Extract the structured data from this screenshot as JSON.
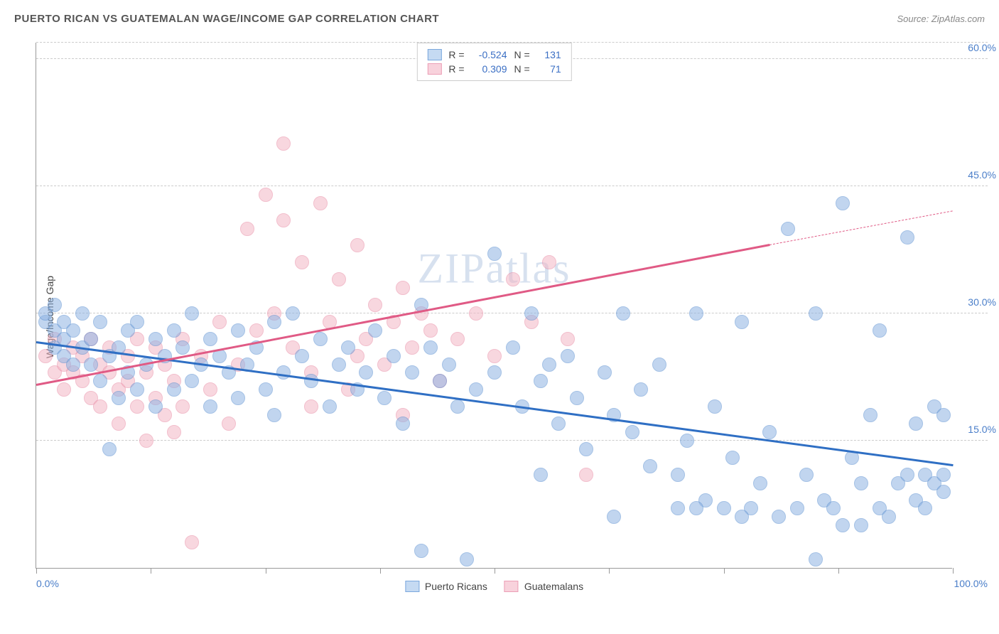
{
  "title": "PUERTO RICAN VS GUATEMALAN WAGE/INCOME GAP CORRELATION CHART",
  "source": "Source: ZipAtlas.com",
  "watermark": "ZIPatlas",
  "ylabel": "Wage/Income Gap",
  "chart": {
    "type": "scatter",
    "xlim": [
      0,
      100
    ],
    "ylim": [
      0,
      62
    ],
    "background_color": "#ffffff",
    "grid_color": "#cccccc",
    "axis_color": "#999999",
    "tick_label_color": "#4a7ec9",
    "y_gridlines": [
      15,
      30,
      45,
      60
    ],
    "y_tick_labels": [
      "15.0%",
      "30.0%",
      "45.0%",
      "60.0%"
    ],
    "x_ticks": [
      0,
      12.5,
      25,
      37.5,
      50,
      62.5,
      75,
      87.5,
      100
    ],
    "x_tick_labels": {
      "0": "0.0%",
      "100": "100.0%"
    },
    "point_radius": 10,
    "point_opacity": 0.55,
    "series": [
      {
        "name": "Puerto Ricans",
        "color": "#8fb4e3",
        "stroke": "#5a8fd0",
        "R": "-0.524",
        "N": "131",
        "trend": {
          "x1": 0,
          "y1": 26.5,
          "x2": 100,
          "y2": 12,
          "color": "#2f6fc4",
          "width": 3
        },
        "points": [
          [
            1,
            29
          ],
          [
            1,
            30
          ],
          [
            2,
            28
          ],
          [
            2,
            26
          ],
          [
            2,
            31
          ],
          [
            3,
            25
          ],
          [
            3,
            29
          ],
          [
            3,
            27
          ],
          [
            4,
            28
          ],
          [
            4,
            24
          ],
          [
            5,
            26
          ],
          [
            5,
            30
          ],
          [
            6,
            24
          ],
          [
            6,
            27
          ],
          [
            7,
            29
          ],
          [
            7,
            22
          ],
          [
            8,
            25
          ],
          [
            8,
            14
          ],
          [
            9,
            26
          ],
          [
            9,
            20
          ],
          [
            10,
            28
          ],
          [
            10,
            23
          ],
          [
            11,
            21
          ],
          [
            11,
            29
          ],
          [
            12,
            24
          ],
          [
            13,
            27
          ],
          [
            13,
            19
          ],
          [
            14,
            25
          ],
          [
            15,
            28
          ],
          [
            15,
            21
          ],
          [
            16,
            26
          ],
          [
            17,
            22
          ],
          [
            17,
            30
          ],
          [
            18,
            24
          ],
          [
            19,
            27
          ],
          [
            19,
            19
          ],
          [
            20,
            25
          ],
          [
            21,
            23
          ],
          [
            22,
            28
          ],
          [
            22,
            20
          ],
          [
            23,
            24
          ],
          [
            24,
            26
          ],
          [
            25,
            21
          ],
          [
            26,
            29
          ],
          [
            26,
            18
          ],
          [
            27,
            23
          ],
          [
            28,
            30
          ],
          [
            29,
            25
          ],
          [
            30,
            22
          ],
          [
            31,
            27
          ],
          [
            32,
            19
          ],
          [
            33,
            24
          ],
          [
            34,
            26
          ],
          [
            35,
            21
          ],
          [
            36,
            23
          ],
          [
            37,
            28
          ],
          [
            38,
            20
          ],
          [
            39,
            25
          ],
          [
            40,
            17
          ],
          [
            41,
            23
          ],
          [
            42,
            31
          ],
          [
            42,
            2
          ],
          [
            43,
            26
          ],
          [
            44,
            22
          ],
          [
            45,
            24
          ],
          [
            46,
            19
          ],
          [
            47,
            1
          ],
          [
            48,
            21
          ],
          [
            50,
            23
          ],
          [
            50,
            37
          ],
          [
            52,
            26
          ],
          [
            53,
            19
          ],
          [
            54,
            30
          ],
          [
            55,
            22
          ],
          [
            56,
            24
          ],
          [
            57,
            17
          ],
          [
            58,
            25
          ],
          [
            59,
            20
          ],
          [
            60,
            14
          ],
          [
            62,
            23
          ],
          [
            63,
            18
          ],
          [
            64,
            30
          ],
          [
            65,
            16
          ],
          [
            66,
            21
          ],
          [
            67,
            12
          ],
          [
            68,
            24
          ],
          [
            70,
            7
          ],
          [
            71,
            15
          ],
          [
            72,
            30
          ],
          [
            73,
            8
          ],
          [
            74,
            19
          ],
          [
            75,
            7
          ],
          [
            76,
            13
          ],
          [
            77,
            29
          ],
          [
            78,
            7
          ],
          [
            79,
            10
          ],
          [
            80,
            16
          ],
          [
            81,
            6
          ],
          [
            82,
            40
          ],
          [
            83,
            7
          ],
          [
            84,
            11
          ],
          [
            85,
            30
          ],
          [
            86,
            8
          ],
          [
            87,
            7
          ],
          [
            88,
            43
          ],
          [
            89,
            13
          ],
          [
            90,
            10
          ],
          [
            91,
            18
          ],
          [
            92,
            7
          ],
          [
            92,
            28
          ],
          [
            93,
            6
          ],
          [
            94,
            10
          ],
          [
            95,
            11
          ],
          [
            95,
            39
          ],
          [
            96,
            8
          ],
          [
            96,
            17
          ],
          [
            97,
            11
          ],
          [
            97,
            7
          ],
          [
            98,
            10
          ],
          [
            98,
            19
          ],
          [
            99,
            11
          ],
          [
            99,
            9
          ],
          [
            99,
            18
          ],
          [
            85,
            1
          ],
          [
            88,
            5
          ],
          [
            90,
            5
          ],
          [
            77,
            6
          ],
          [
            70,
            11
          ],
          [
            72,
            7
          ],
          [
            63,
            6
          ],
          [
            55,
            11
          ]
        ]
      },
      {
        "name": "Guatemalans",
        "color": "#f4b8c6",
        "stroke": "#e88aa4",
        "R": "0.309",
        "N": "71",
        "trend": {
          "x1": 0,
          "y1": 21.5,
          "x2": 80,
          "y2": 38,
          "color": "#e05a85",
          "width": 2.5,
          "extend_x2": 100,
          "extend_y2": 42
        },
        "points": [
          [
            1,
            25
          ],
          [
            2,
            23
          ],
          [
            2,
            27
          ],
          [
            3,
            24
          ],
          [
            3,
            21
          ],
          [
            4,
            26
          ],
          [
            4,
            23
          ],
          [
            5,
            22
          ],
          [
            5,
            25
          ],
          [
            6,
            20
          ],
          [
            6,
            27
          ],
          [
            7,
            24
          ],
          [
            7,
            19
          ],
          [
            8,
            23
          ],
          [
            8,
            26
          ],
          [
            9,
            21
          ],
          [
            9,
            17
          ],
          [
            10,
            25
          ],
          [
            10,
            22
          ],
          [
            11,
            19
          ],
          [
            11,
            27
          ],
          [
            12,
            23
          ],
          [
            12,
            15
          ],
          [
            13,
            20
          ],
          [
            13,
            26
          ],
          [
            14,
            18
          ],
          [
            14,
            24
          ],
          [
            15,
            16
          ],
          [
            15,
            22
          ],
          [
            16,
            27
          ],
          [
            16,
            19
          ],
          [
            17,
            3
          ],
          [
            18,
            25
          ],
          [
            19,
            21
          ],
          [
            20,
            29
          ],
          [
            21,
            17
          ],
          [
            22,
            24
          ],
          [
            23,
            40
          ],
          [
            24,
            28
          ],
          [
            25,
            44
          ],
          [
            26,
            30
          ],
          [
            27,
            41
          ],
          [
            27,
            50
          ],
          [
            28,
            26
          ],
          [
            29,
            36
          ],
          [
            30,
            23
          ],
          [
            31,
            43
          ],
          [
            32,
            29
          ],
          [
            33,
            34
          ],
          [
            34,
            21
          ],
          [
            35,
            38
          ],
          [
            36,
            27
          ],
          [
            37,
            31
          ],
          [
            38,
            24
          ],
          [
            39,
            29
          ],
          [
            40,
            33
          ],
          [
            41,
            26
          ],
          [
            42,
            30
          ],
          [
            43,
            28
          ],
          [
            44,
            22
          ],
          [
            46,
            27
          ],
          [
            48,
            30
          ],
          [
            50,
            25
          ],
          [
            52,
            34
          ],
          [
            54,
            29
          ],
          [
            56,
            36
          ],
          [
            58,
            27
          ],
          [
            60,
            11
          ],
          [
            35,
            25
          ],
          [
            40,
            18
          ],
          [
            30,
            19
          ]
        ]
      }
    ]
  },
  "legend_top": {
    "rows": [
      {
        "swatch_fill": "#c5daf2",
        "swatch_stroke": "#7ba8dd",
        "r_label": "R =",
        "r_val": "-0.524",
        "n_label": "N =",
        "n_val": "131"
      },
      {
        "swatch_fill": "#f8d2dc",
        "swatch_stroke": "#ec9fb6",
        "r_label": "R =",
        "r_val": "0.309",
        "n_label": "N =",
        "n_val": "71"
      }
    ]
  },
  "legend_bottom": [
    {
      "swatch_fill": "#c5daf2",
      "swatch_stroke": "#7ba8dd",
      "label": "Puerto Ricans"
    },
    {
      "swatch_fill": "#f8d2dc",
      "swatch_stroke": "#ec9fb6",
      "label": "Guatemalans"
    }
  ]
}
